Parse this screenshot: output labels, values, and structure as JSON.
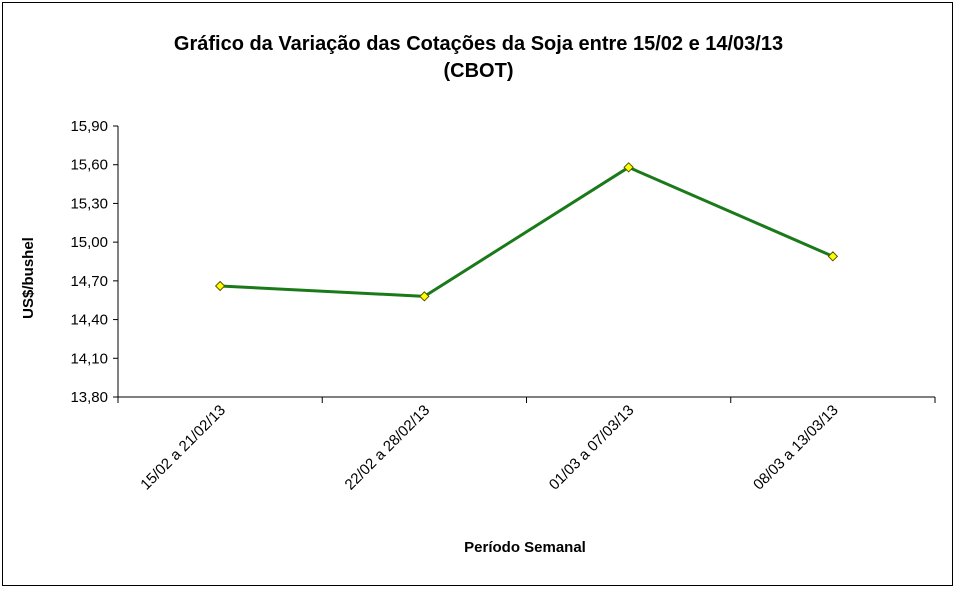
{
  "chart_data": {
    "type": "line",
    "title": "Gráfico da Variação das Cotações da Soja entre 15/02 e 14/03/13",
    "subtitle": "(CBOT)",
    "xlabel": "Período Semanal",
    "ylabel": "US$/bushel",
    "categories": [
      "15/02 a 21/02/13",
      "22/02 a 28/02/13",
      "01/03 a 07/03/13",
      "08/03 a 13/03/13"
    ],
    "values": [
      14.66,
      14.58,
      15.58,
      14.89
    ],
    "ylim": [
      13.8,
      15.9
    ],
    "yticks": [
      "13,80",
      "14,10",
      "14,40",
      "14,70",
      "15,00",
      "15,30",
      "15,60",
      "15,90"
    ],
    "grid": false,
    "line_color": "#1a7a1a",
    "marker_color": "#ffff00"
  }
}
